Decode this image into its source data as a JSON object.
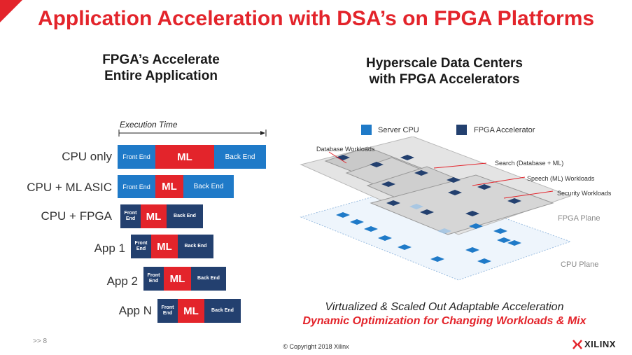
{
  "title": "Application Acceleration with DSA’s on FPGA Platforms",
  "left_heading": [
    "FPGA’s Accelerate",
    "Entire Application"
  ],
  "right_heading": [
    "Hyperscale Data Centers",
    "with FPGA Accelerators"
  ],
  "exec_label": "Execution Time",
  "rows": [
    {
      "label": "CPU only",
      "front": "Front End",
      "ml": "ML",
      "back": "Back End"
    },
    {
      "label": "CPU + ML ASIC",
      "front": "Front End",
      "ml": "ML",
      "back": "Back End"
    },
    {
      "label": "CPU + FPGA",
      "front": "Front End",
      "ml": "ML",
      "back": "Back End"
    },
    {
      "label": "App 1",
      "front": "Front End",
      "ml": "ML",
      "back": "Back End"
    },
    {
      "label": "App 2",
      "front": "Front End",
      "ml": "ML",
      "back": "Back End"
    },
    {
      "label": "App N",
      "front": "Front End",
      "ml": "ML",
      "back": "Back End"
    }
  ],
  "legend": {
    "server_cpu": "Server CPU",
    "fpga_accel": "FPGA Accelerator",
    "server_cpu_color": "#1f7ac8",
    "fpga_color": "#23406f"
  },
  "annotations": {
    "db": "Database Workloads",
    "search": "Search (Database + ML)",
    "speech": "Speech (ML) Workloads",
    "security": "Security Workloads",
    "fpga_plane": "FPGA Plane",
    "cpu_plane": "CPU Plane"
  },
  "caption1": "Virtualized & Scaled Out Adaptable Acceleration",
  "caption2": "Dynamic Optimization for Changing Workloads & Mix",
  "footer": {
    "page": ">> 8",
    "copyright": "© Copyright 2018 Xilinx",
    "logo": "XILINX"
  },
  "colors": {
    "accent": "#e3242b",
    "blue": "#1f7ac8",
    "navy": "#23406f"
  }
}
